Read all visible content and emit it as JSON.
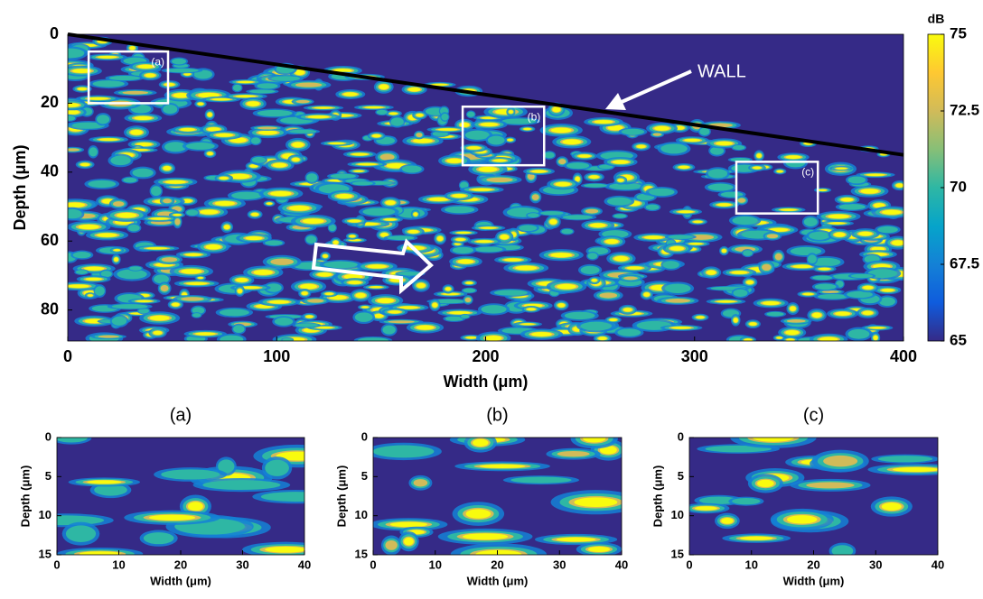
{
  "chart_data": [
    {
      "type": "heatmap",
      "xlabel": "Width (μm)",
      "ylabel": "Depth (μm)",
      "xlim": [
        0,
        400
      ],
      "ylim": [
        0,
        89
      ],
      "xticks": [
        0,
        100,
        200,
        300,
        400
      ],
      "yticks": [
        0,
        20,
        40,
        60,
        80
      ],
      "y_inverted": true,
      "colorbar": {
        "label": "dB",
        "lim": [
          65,
          75
        ],
        "ticks": [
          65,
          67.5,
          70,
          72.5,
          75
        ],
        "colormap": [
          "#352a87",
          "#0f5cdd",
          "#1481d6",
          "#06a4ca",
          "#2eb7a4",
          "#87bf77",
          "#d1bb59",
          "#fec832",
          "#f9fb0e"
        ]
      },
      "regions": [
        {
          "label": "(a)",
          "x": [
            10,
            48
          ],
          "y": [
            5,
            20
          ]
        },
        {
          "label": "(b)",
          "x": [
            189,
            228
          ],
          "y": [
            21,
            38
          ]
        },
        {
          "label": "(c)",
          "x": [
            320,
            359
          ],
          "y": [
            37,
            52
          ]
        }
      ],
      "wall": {
        "label": "WALL",
        "x": [
          0,
          400
        ],
        "y": [
          0,
          35
        ]
      }
    },
    {
      "type": "heatmap",
      "title": "(a)",
      "xlabel": "Width (μm)",
      "ylabel": "Depth (μm)",
      "xlim": [
        0,
        40
      ],
      "ylim": [
        0,
        15
      ],
      "xticks": [
        0,
        10,
        20,
        30,
        40
      ],
      "yticks": [
        0,
        5,
        10,
        15
      ],
      "y_inverted": true
    },
    {
      "type": "heatmap",
      "title": "(b)",
      "xlabel": "Width (μm)",
      "ylabel": "Depth (μm)",
      "xlim": [
        0,
        40
      ],
      "ylim": [
        0,
        15
      ],
      "xticks": [
        0,
        10,
        20,
        30,
        40
      ],
      "yticks": [
        0,
        5,
        10,
        15
      ],
      "y_inverted": true
    },
    {
      "type": "heatmap",
      "title": "(c)",
      "xlabel": "Width (μm)",
      "ylabel": "Depth (μm)",
      "xlim": [
        0,
        40
      ],
      "ylim": [
        0,
        15
      ],
      "xticks": [
        0,
        10,
        20,
        30,
        40
      ],
      "yticks": [
        0,
        5,
        10,
        15
      ],
      "y_inverted": true
    }
  ]
}
